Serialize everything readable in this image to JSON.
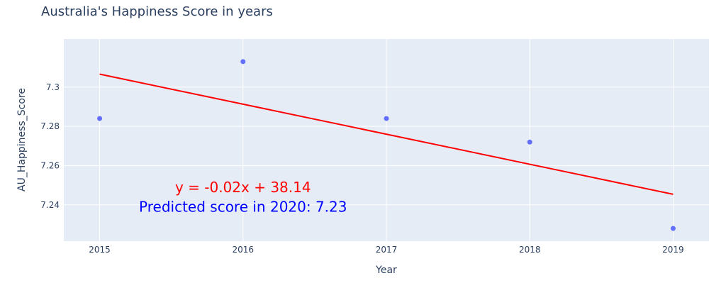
{
  "chart_data": {
    "type": "scatter",
    "title": "Australia's Happiness Score in years",
    "xlabel": "Year",
    "ylabel": "AU_Happiness_Score",
    "xlim": [
      2014.75,
      2019.25
    ],
    "ylim": [
      7.2215,
      7.3245
    ],
    "x_ticks": [
      2015,
      2016,
      2017,
      2018,
      2019
    ],
    "y_ticks": [
      7.24,
      7.26,
      7.28,
      7.3
    ],
    "y_tick_labels": [
      "7.24",
      "7.26",
      "7.28",
      "7.3"
    ],
    "grid": true,
    "series": [
      {
        "kind": "scatter",
        "x": [
          2015,
          2016,
          2017,
          2018,
          2019
        ],
        "y": [
          7.284,
          7.313,
          7.284,
          7.272,
          7.228
        ],
        "color": "#636efa"
      },
      {
        "kind": "line",
        "x": [
          2015,
          2019
        ],
        "y": [
          7.3066,
          7.2454
        ],
        "color": "#ff0000"
      }
    ],
    "annotations": [
      {
        "text": "y = -0.02x + 38.14",
        "x": 2016.0,
        "y": 7.249,
        "color": "#ff0000"
      },
      {
        "text": "Predicted score in 2020: 7.23",
        "x": 2016.0,
        "y": 7.239,
        "color": "#0000ff"
      }
    ],
    "colors": {
      "plot_bg": "#e5ecf6",
      "grid": "#ffffff",
      "text": "#2a3f5f"
    }
  }
}
